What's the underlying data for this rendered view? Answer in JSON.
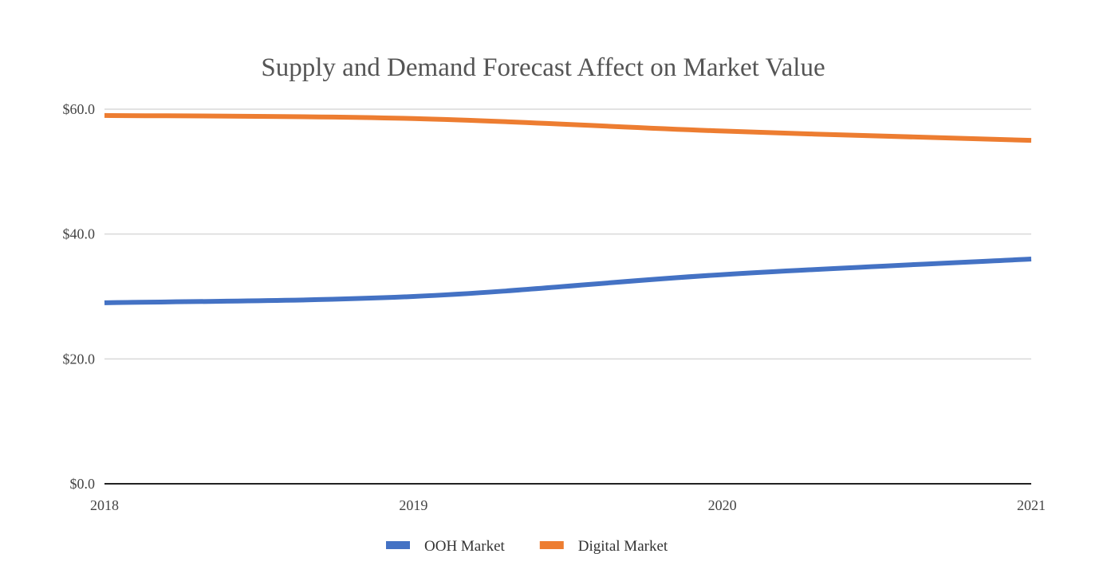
{
  "chart_data": {
    "type": "line",
    "title": "Supply and Demand Forecast Affect on Market Value",
    "xlabel": "",
    "ylabel": "",
    "categories": [
      "2018",
      "2019",
      "2020",
      "2021"
    ],
    "ylim": [
      0,
      60
    ],
    "yticks": [
      0,
      20,
      40,
      60
    ],
    "ytick_labels": [
      "$0.0",
      "$20.0",
      "$40.0",
      "$60.0"
    ],
    "grid": true,
    "legend_position": "bottom",
    "series": [
      {
        "name": "OOH Market",
        "color": "#4472C4",
        "values": [
          29,
          30,
          33.5,
          36
        ]
      },
      {
        "name": "Digital Market",
        "color": "#ED7D31",
        "values": [
          59,
          58.5,
          56.5,
          55
        ]
      }
    ]
  }
}
